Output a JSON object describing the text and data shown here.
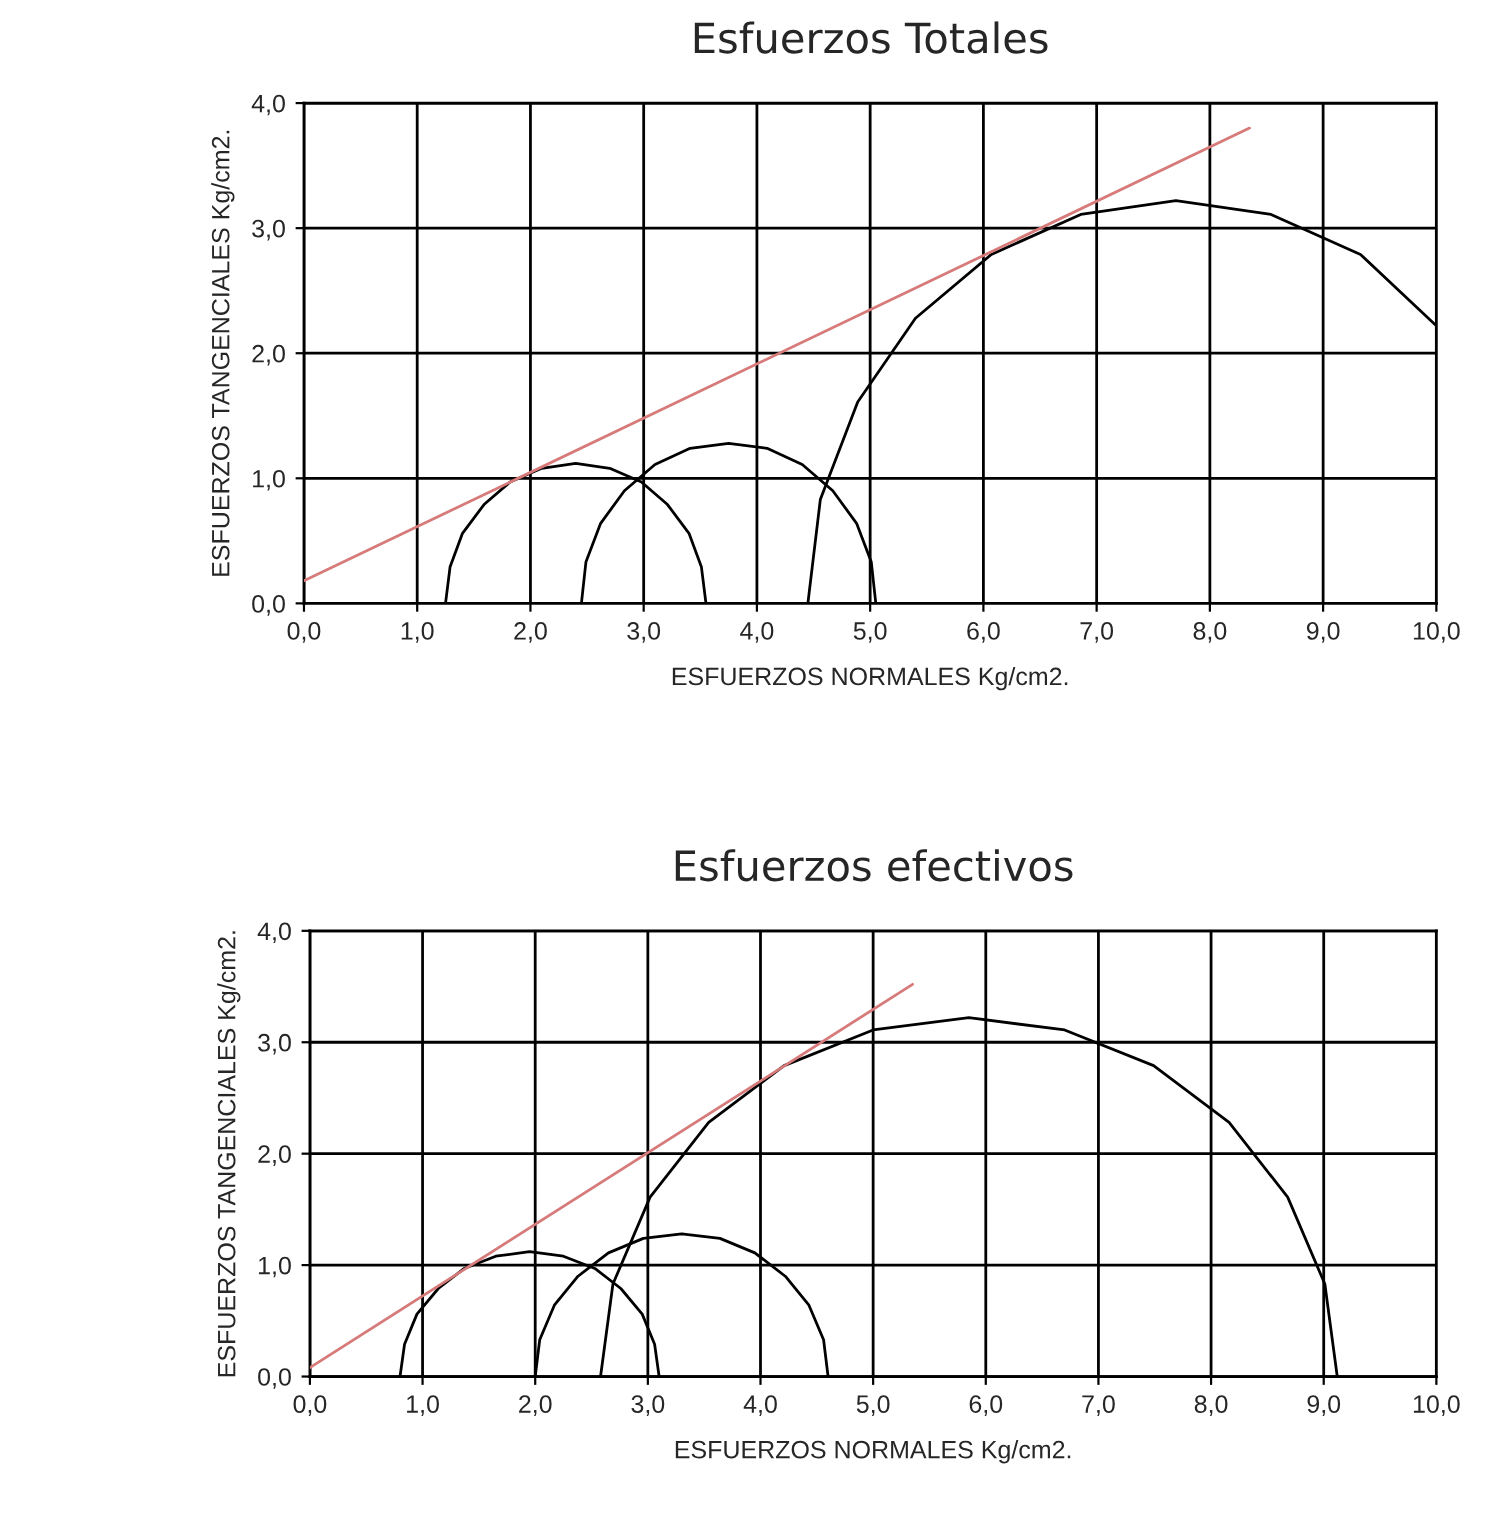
{
  "chart_data": [
    {
      "type": "line",
      "title": "Esfuerzos Totales",
      "xlabel": "ESFUERZOS NORMALES Kg/cm2.",
      "ylabel": "ESFUERZOS TANGENCIALES Kg/cm2.",
      "grid": true,
      "marker": "none",
      "line_style": "solid",
      "xlim": [
        0,
        10
      ],
      "ylim": [
        0,
        4
      ],
      "xticks": [
        {
          "value": 0,
          "label": "0,0"
        },
        {
          "value": 1,
          "label": "1,0"
        },
        {
          "value": 2,
          "label": "2,0"
        },
        {
          "value": 3,
          "label": "3,0"
        },
        {
          "value": 4,
          "label": "4,0"
        },
        {
          "value": 5,
          "label": "5,0"
        },
        {
          "value": 6,
          "label": "6,0"
        },
        {
          "value": 7,
          "label": "7,0"
        },
        {
          "value": 8,
          "label": "8,0"
        },
        {
          "value": 9,
          "label": "9,0"
        },
        {
          "value": 10,
          "label": "10,0"
        }
      ],
      "yticks": [
        {
          "value": 0,
          "label": "0,0"
        },
        {
          "value": 1,
          "label": "1,0"
        },
        {
          "value": 2,
          "label": "2,0"
        },
        {
          "value": 3,
          "label": "3,0"
        },
        {
          "value": 4,
          "label": "4,0"
        }
      ],
      "series": [
        {
          "color": "#000000",
          "x": [
            1.25,
            1.29,
            1.4,
            1.59,
            1.82,
            2.1,
            2.4,
            2.7,
            2.98,
            3.21,
            3.4,
            3.51,
            3.55
          ],
          "values": [
            0,
            0.29,
            0.56,
            0.79,
            0.97,
            1.08,
            1.12,
            1.08,
            0.97,
            0.79,
            0.56,
            0.29,
            0
          ]
        },
        {
          "color": "#000000",
          "x": [
            2.45,
            2.49,
            2.62,
            2.83,
            3.1,
            3.41,
            3.75,
            4.09,
            4.4,
            4.67,
            4.88,
            5.01,
            5.05
          ],
          "values": [
            0,
            0.33,
            0.64,
            0.9,
            1.11,
            1.24,
            1.28,
            1.24,
            1.11,
            0.9,
            0.64,
            0.33,
            0
          ]
        },
        {
          "color": "#000000",
          "x": [
            4.45,
            4.56,
            4.89,
            5.4,
            6.07,
            6.86,
            7.7,
            8.54,
            9.33,
            10.0
          ],
          "values": [
            0,
            0.83,
            1.61,
            2.28,
            2.79,
            3.11,
            3.22,
            3.11,
            2.79,
            2.22
          ]
        },
        {
          "color": "#d77a7a",
          "x": [
            0,
            8.35
          ],
          "values": [
            0.18,
            3.8
          ]
        }
      ]
    },
    {
      "type": "line",
      "title": "Esfuerzos efectivos",
      "xlabel": "ESFUERZOS NORMALES Kg/cm2.",
      "ylabel": "ESFUERZOS TANGENCIALES Kg/cm2.",
      "grid": true,
      "marker": "none",
      "line_style": "solid",
      "xlim": [
        0,
        10
      ],
      "ylim": [
        0,
        4
      ],
      "xticks": [
        {
          "value": 0,
          "label": "0,0"
        },
        {
          "value": 1,
          "label": "1,0"
        },
        {
          "value": 2,
          "label": "2,0"
        },
        {
          "value": 3,
          "label": "3,0"
        },
        {
          "value": 4,
          "label": "4,0"
        },
        {
          "value": 5,
          "label": "5,0"
        },
        {
          "value": 6,
          "label": "6,0"
        },
        {
          "value": 7,
          "label": "7,0"
        },
        {
          "value": 8,
          "label": "8,0"
        },
        {
          "value": 9,
          "label": "9,0"
        },
        {
          "value": 10,
          "label": "10,0"
        }
      ],
      "yticks": [
        {
          "value": 0,
          "label": "0,0"
        },
        {
          "value": 1,
          "label": "1,0"
        },
        {
          "value": 2,
          "label": "2,0"
        },
        {
          "value": 3,
          "label": "3,0"
        },
        {
          "value": 4,
          "label": "4,0"
        }
      ],
      "series": [
        {
          "color": "#000000",
          "x": [
            0.8,
            0.84,
            0.95,
            1.14,
            1.37,
            1.65,
            1.95,
            2.25,
            2.53,
            2.76,
            2.95,
            3.06,
            3.1
          ],
          "values": [
            0,
            0.29,
            0.56,
            0.79,
            0.97,
            1.08,
            1.12,
            1.08,
            0.97,
            0.79,
            0.56,
            0.29,
            0
          ]
        },
        {
          "color": "#000000",
          "x": [
            2.0,
            2.04,
            2.17,
            2.38,
            2.65,
            2.96,
            3.3,
            3.64,
            3.95,
            4.22,
            4.43,
            4.56,
            4.6
          ],
          "values": [
            0,
            0.33,
            0.64,
            0.9,
            1.11,
            1.24,
            1.28,
            1.24,
            1.11,
            0.9,
            0.64,
            0.33,
            0
          ]
        },
        {
          "color": "#000000",
          "x": [
            2.58,
            2.69,
            3.02,
            3.54,
            4.21,
            5.0,
            5.85,
            6.7,
            7.49,
            8.16,
            8.68,
            9.01,
            9.12
          ],
          "values": [
            0,
            0.83,
            1.61,
            2.28,
            2.79,
            3.11,
            3.22,
            3.11,
            2.79,
            2.28,
            1.61,
            0.83,
            0
          ]
        },
        {
          "color": "#d77a7a",
          "x": [
            0,
            5.35
          ],
          "values": [
            0.08,
            3.52
          ]
        }
      ]
    }
  ]
}
